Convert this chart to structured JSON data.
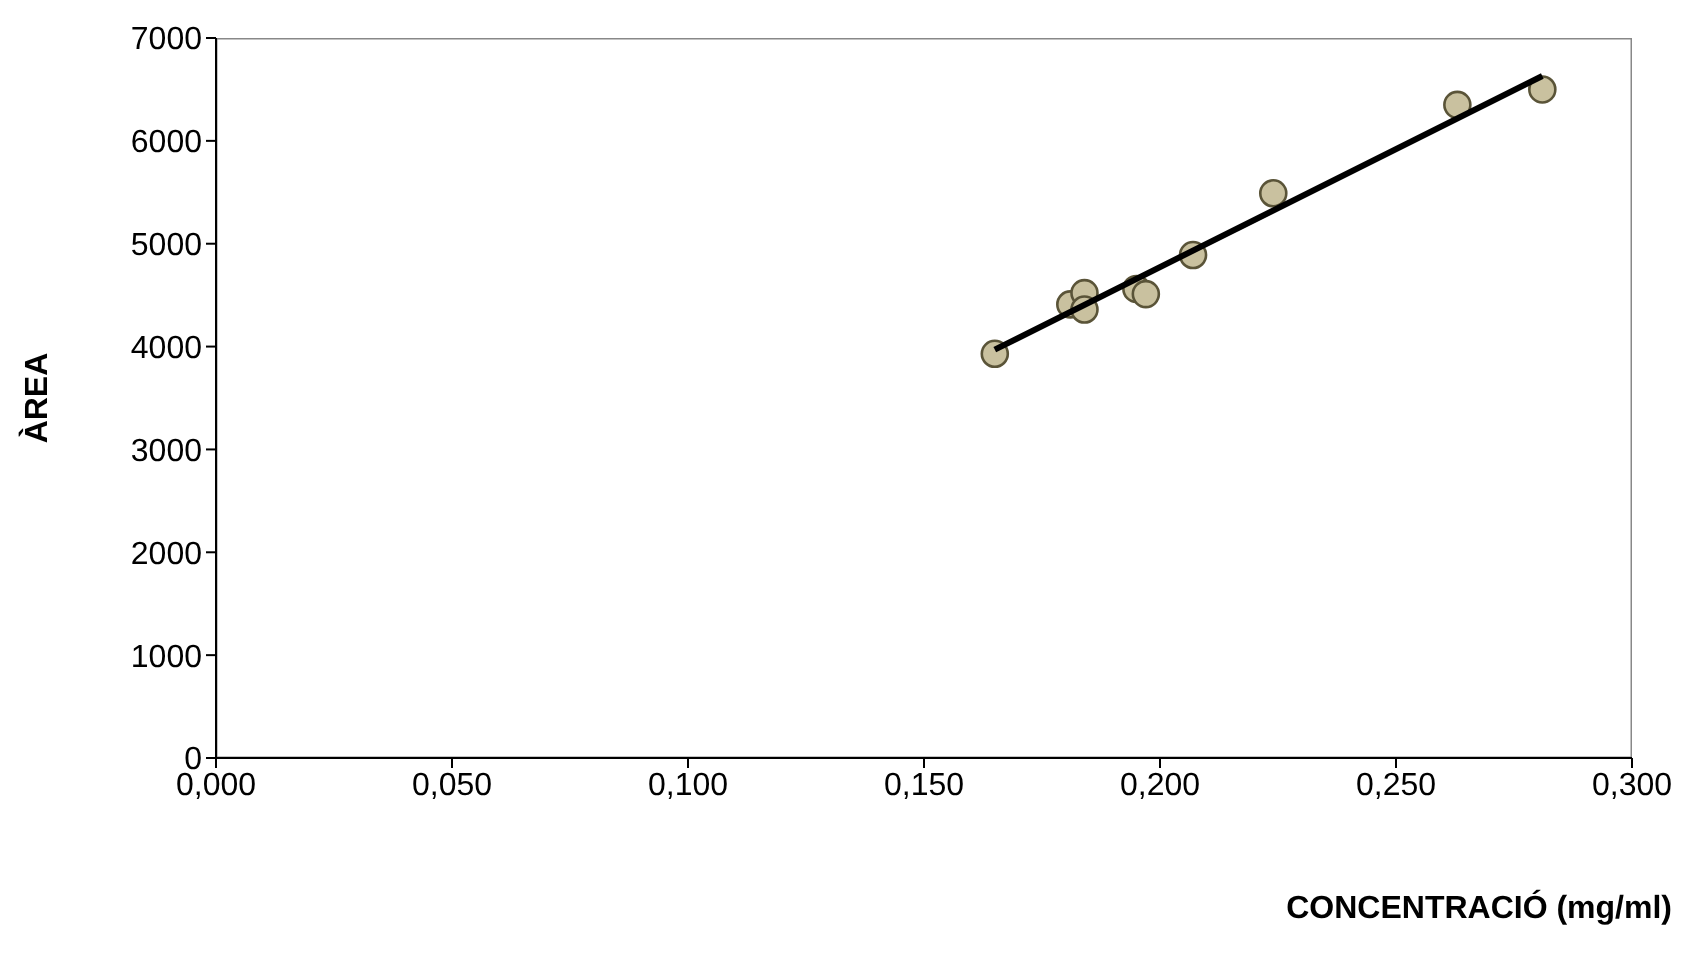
{
  "chart_data": {
    "type": "scatter",
    "xlabel": "CONCENTRACIÓ (mg/ml)",
    "ylabel": "ÀREA",
    "xlim": [
      0,
      0.3
    ],
    "xticks": [
      {
        "value": 0,
        "label": "0,000"
      },
      {
        "value": 0.05,
        "label": "0,050"
      },
      {
        "value": 0.1,
        "label": "0,100"
      },
      {
        "value": 0.15,
        "label": "0,150"
      },
      {
        "value": 0.2,
        "label": "0,200"
      },
      {
        "value": 0.25,
        "label": "0,250"
      },
      {
        "value": 0.3,
        "label": "0,300"
      }
    ],
    "ylim": [
      0,
      7000
    ],
    "yticks": [
      0,
      1000,
      2000,
      3000,
      4000,
      5000,
      6000,
      7000
    ],
    "series": [
      {
        "color": "#c9c19f",
        "marker": "circle",
        "x": [
          0.165,
          0.181,
          0.184,
          0.184,
          0.195,
          0.197,
          0.207,
          0.224,
          0.263,
          0.281
        ],
        "values": [
          3930,
          4410,
          4520,
          4360,
          4560,
          4510,
          4890,
          5490,
          6350,
          6500
        ]
      },
      {
        "type": "line",
        "color": "#000000",
        "marker": "none",
        "line_style": "solid",
        "x": [
          0.165,
          0.281
        ],
        "values": [
          3970,
          6630
        ]
      }
    ]
  }
}
